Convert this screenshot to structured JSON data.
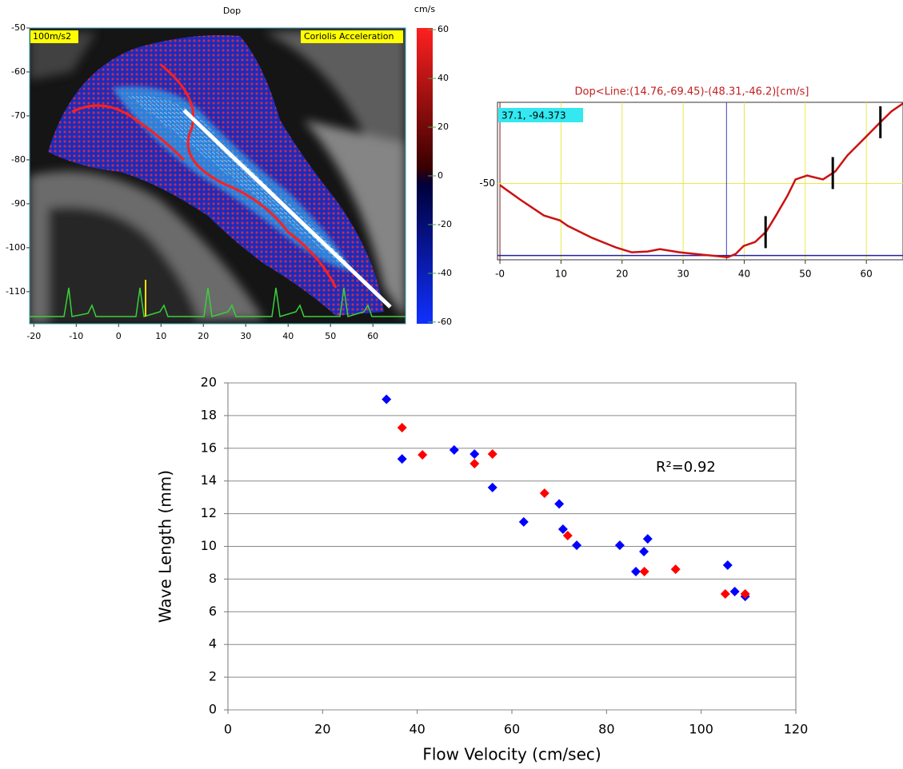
{
  "chart_data": [
    {
      "type": "image",
      "title": "Dop",
      "labels": [
        "100m/s2",
        "Coriolis Acceleration"
      ],
      "xlim": [
        -21,
        67.7
      ],
      "ylim": [
        -117.3,
        -50
      ],
      "xticks": [
        -20,
        -10,
        0,
        10,
        20,
        30,
        40,
        50,
        60
      ],
      "yticks": [
        -50,
        -60,
        -70,
        -80,
        -90,
        -100,
        -110
      ],
      "colorbar_label": "cm/s",
      "colorbar_lim": [
        -60.7,
        60.7
      ],
      "colorbar_ticks": [
        60,
        40,
        20,
        0,
        -20,
        -40,
        -60
      ]
    },
    {
      "type": "line",
      "title": "Dop<Line:(14.76,-69.45)-(48.31,-46.2)[cm/s]",
      "xlim": [
        -0.4,
        66
      ],
      "ylim": [
        -97,
        0
      ],
      "xticks": [
        {
          "value": 0,
          "label": "-0"
        },
        10,
        20,
        30,
        40,
        50,
        60
      ],
      "yticks": [
        {
          "value": -50,
          "label": "-50"
        }
      ],
      "grid": true,
      "grid_color": "#e8e84a",
      "cursor_label": "37.1, -94.373",
      "cursor_x": 37.1,
      "cursor_y": -94.373,
      "markers_x": [
        43.5,
        54.5,
        62.3
      ],
      "series": [
        {
          "color": "#cc1111",
          "x": [
            0,
            3.3,
            7.2,
            9.8,
            11.1,
            15.1,
            19.0,
            21.6,
            24.2,
            26.2,
            29.4,
            33.3,
            37.3,
            38.6,
            39.9,
            41.8,
            43.6,
            45.2,
            47.1,
            48.4,
            50.3,
            52.9,
            54.9,
            56.9,
            59.5,
            62.1,
            64.1,
            66
          ],
          "values": [
            -51.0,
            -59.9,
            -69.7,
            -72.7,
            -76.1,
            -83.5,
            -89.4,
            -92.4,
            -91.9,
            -90.4,
            -92.4,
            -93.9,
            -95.4,
            -93.4,
            -88.5,
            -86.0,
            -79.6,
            -69.7,
            -57.4,
            -47.5,
            -45.1,
            -47.5,
            -42.6,
            -32.7,
            -22.9,
            -13.0,
            -5.6,
            -0.7
          ]
        }
      ]
    },
    {
      "type": "scatter",
      "x_label": "Flow Velocity (cm/sec)",
      "y_label": "Wave Length (mm)",
      "annotation": "R²=0.92",
      "xlim": [
        0,
        120
      ],
      "ylim": [
        0,
        20
      ],
      "xticks": [
        0,
        20,
        40,
        60,
        80,
        100,
        120
      ],
      "yticks": [
        0,
        2,
        4,
        6,
        8,
        10,
        12,
        14,
        16,
        18,
        20
      ],
      "grid": true,
      "series": [
        {
          "color": "#0000ff",
          "x": [
            33.5,
            36.8,
            47.8,
            52.1,
            55.9,
            62.5,
            70.0,
            70.8,
            73.7,
            82.8,
            86.2,
            87.9,
            88.7,
            105.6,
            107.1,
            109.3
          ],
          "values": [
            19.0,
            15.35,
            15.9,
            15.65,
            13.6,
            11.5,
            12.6,
            11.05,
            10.07,
            10.07,
            8.46,
            9.68,
            10.46,
            8.85,
            7.24,
            6.94
          ]
        },
        {
          "color": "#ff0000",
          "x": [
            36.8,
            41.1,
            52.1,
            55.9,
            66.9,
            71.8,
            88.0,
            94.6,
            105.1,
            109.3
          ],
          "values": [
            17.26,
            15.6,
            15.06,
            15.65,
            13.25,
            10.66,
            8.46,
            8.6,
            7.09,
            7.09
          ]
        }
      ]
    }
  ]
}
